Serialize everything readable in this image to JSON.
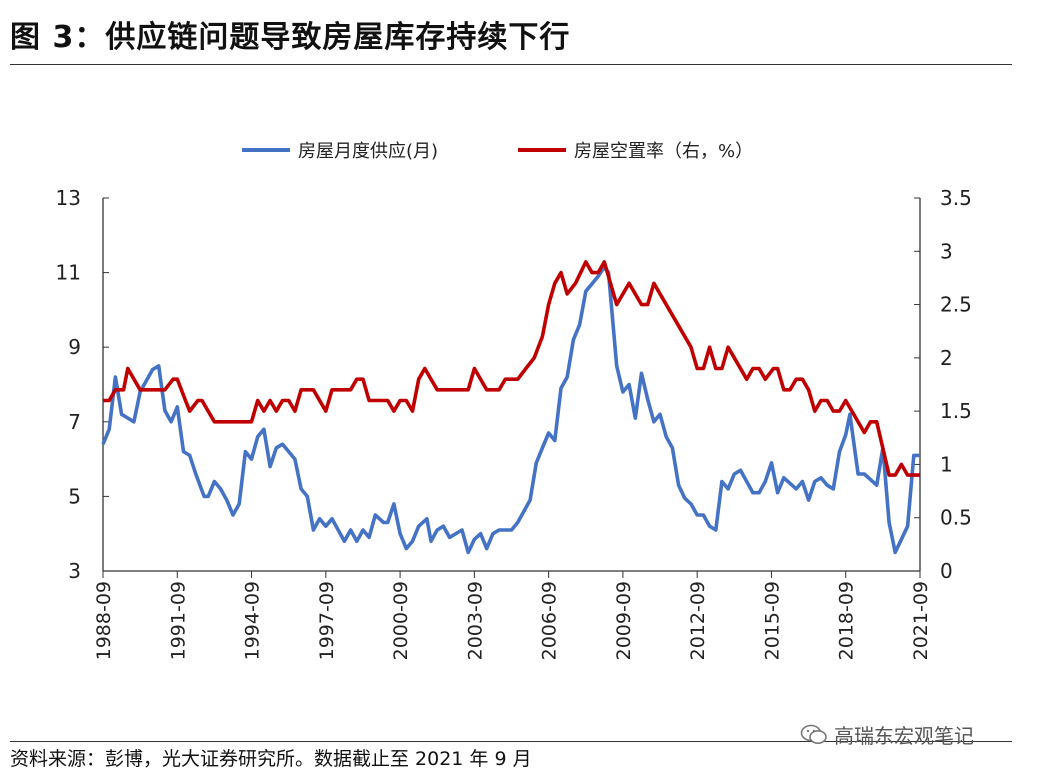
{
  "title": "图 3：供应链问题导致房屋库存持续下行",
  "source": "资料来源：彭博，光大证券研究所。数据截止至 2021 年 9 月",
  "watermark": "高瑞东宏观笔记",
  "chart_data": {
    "type": "line",
    "title": "",
    "xlabel": "",
    "ylabel": "",
    "legend_position": "top",
    "grid": false,
    "x_ticks": [
      "1988-09",
      "1991-09",
      "1994-09",
      "1997-09",
      "2000-09",
      "2003-09",
      "2006-09",
      "2009-09",
      "2012-09",
      "2015-09",
      "2018-09",
      "2021-09"
    ],
    "xlim": [
      "1988-09",
      "2021-09"
    ],
    "y_left": {
      "ylim": [
        3,
        13
      ],
      "ticks": [
        "3",
        "5",
        "7",
        "9",
        "11",
        "13"
      ]
    },
    "y_right": {
      "ylim": [
        0,
        3.5
      ],
      "ticks": [
        "0",
        "0.5",
        "1",
        "1.5",
        "2",
        "2.5",
        "3",
        "3.5"
      ]
    },
    "series": [
      {
        "name": "房屋月度供应(月)",
        "axis": "left",
        "color": "#4472C4",
        "points": [
          [
            "1988-09",
            6.4
          ],
          [
            "1988-12",
            6.8
          ],
          [
            "1989-03",
            8.2
          ],
          [
            "1989-06",
            7.2
          ],
          [
            "1989-12",
            7.0
          ],
          [
            "1990-03",
            7.8
          ],
          [
            "1990-09",
            8.4
          ],
          [
            "1990-12",
            8.5
          ],
          [
            "1991-03",
            7.3
          ],
          [
            "1991-06",
            7.0
          ],
          [
            "1991-09",
            7.4
          ],
          [
            "1991-12",
            6.2
          ],
          [
            "1992-03",
            6.1
          ],
          [
            "1992-06",
            5.6
          ],
          [
            "1992-10",
            5.0
          ],
          [
            "1992-12",
            5.0
          ],
          [
            "1993-03",
            5.4
          ],
          [
            "1993-06",
            5.2
          ],
          [
            "1993-09",
            4.9
          ],
          [
            "1993-12",
            4.5
          ],
          [
            "1994-03",
            4.8
          ],
          [
            "1994-06",
            6.2
          ],
          [
            "1994-09",
            6.0
          ],
          [
            "1994-12",
            6.6
          ],
          [
            "1995-03",
            6.8
          ],
          [
            "1995-06",
            5.8
          ],
          [
            "1995-09",
            6.3
          ],
          [
            "1995-12",
            6.4
          ],
          [
            "1996-03",
            6.2
          ],
          [
            "1996-06",
            6.0
          ],
          [
            "1996-09",
            5.2
          ],
          [
            "1996-12",
            5.0
          ],
          [
            "1997-03",
            4.1
          ],
          [
            "1997-06",
            4.4
          ],
          [
            "1997-09",
            4.2
          ],
          [
            "1997-12",
            4.4
          ],
          [
            "1998-06",
            3.8
          ],
          [
            "1998-09",
            4.1
          ],
          [
            "1998-12",
            3.8
          ],
          [
            "1999-03",
            4.1
          ],
          [
            "1999-06",
            3.9
          ],
          [
            "1999-09",
            4.5
          ],
          [
            "2000-01",
            4.3
          ],
          [
            "2000-03",
            4.3
          ],
          [
            "2000-06",
            4.8
          ],
          [
            "2000-09",
            4.0
          ],
          [
            "2000-12",
            3.6
          ],
          [
            "2001-03",
            3.8
          ],
          [
            "2001-06",
            4.2
          ],
          [
            "2001-10",
            4.4
          ],
          [
            "2001-12",
            3.8
          ],
          [
            "2002-03",
            4.1
          ],
          [
            "2002-06",
            4.2
          ],
          [
            "2002-09",
            3.9
          ],
          [
            "2003-03",
            4.1
          ],
          [
            "2003-06",
            3.5
          ],
          [
            "2003-09",
            3.85
          ],
          [
            "2003-12",
            4.0
          ],
          [
            "2004-03",
            3.6
          ],
          [
            "2004-06",
            4.0
          ],
          [
            "2004-09",
            4.1
          ],
          [
            "2005-03",
            4.1
          ],
          [
            "2005-06",
            4.3
          ],
          [
            "2005-10",
            4.7
          ],
          [
            "2005-12",
            4.9
          ],
          [
            "2006-03",
            5.9
          ],
          [
            "2006-06",
            6.3
          ],
          [
            "2006-09",
            6.7
          ],
          [
            "2006-12",
            6.5
          ],
          [
            "2007-03",
            7.9
          ],
          [
            "2007-06",
            8.2
          ],
          [
            "2007-09",
            9.2
          ],
          [
            "2007-12",
            9.6
          ],
          [
            "2008-03",
            10.5
          ],
          [
            "2008-09",
            10.9
          ],
          [
            "2008-12",
            11.15
          ],
          [
            "2009-02",
            11.0
          ],
          [
            "2009-06",
            8.5
          ],
          [
            "2009-09",
            7.8
          ],
          [
            "2009-12",
            8.0
          ],
          [
            "2010-03",
            7.1
          ],
          [
            "2010-06",
            8.3
          ],
          [
            "2010-09",
            7.6
          ],
          [
            "2010-12",
            7.0
          ],
          [
            "2011-03",
            7.2
          ],
          [
            "2011-06",
            6.6
          ],
          [
            "2011-09",
            6.3
          ],
          [
            "2011-12",
            5.3
          ],
          [
            "2012-03",
            4.95
          ],
          [
            "2012-06",
            4.8
          ],
          [
            "2012-09",
            4.5
          ],
          [
            "2012-12",
            4.5
          ],
          [
            "2013-03",
            4.2
          ],
          [
            "2013-06",
            4.1
          ],
          [
            "2013-09",
            5.4
          ],
          [
            "2013-12",
            5.2
          ],
          [
            "2014-03",
            5.6
          ],
          [
            "2014-06",
            5.7
          ],
          [
            "2014-09",
            5.4
          ],
          [
            "2014-12",
            5.1
          ],
          [
            "2015-03",
            5.1
          ],
          [
            "2015-06",
            5.4
          ],
          [
            "2015-09",
            5.9
          ],
          [
            "2015-12",
            5.1
          ],
          [
            "2016-03",
            5.5
          ],
          [
            "2016-06",
            5.35
          ],
          [
            "2016-09",
            5.2
          ],
          [
            "2016-12",
            5.4
          ],
          [
            "2017-03",
            4.9
          ],
          [
            "2017-06",
            5.4
          ],
          [
            "2017-09",
            5.5
          ],
          [
            "2017-12",
            5.3
          ],
          [
            "2018-03",
            5.2
          ],
          [
            "2018-06",
            6.2
          ],
          [
            "2018-09",
            6.65
          ],
          [
            "2018-11",
            7.2
          ],
          [
            "2019-03",
            5.6
          ],
          [
            "2019-06",
            5.6
          ],
          [
            "2019-09",
            5.45
          ],
          [
            "2019-12",
            5.3
          ],
          [
            "2020-03",
            6.3
          ],
          [
            "2020-06",
            4.3
          ],
          [
            "2020-09",
            3.5
          ],
          [
            "2020-12",
            3.85
          ],
          [
            "2021-03",
            4.2
          ],
          [
            "2021-06",
            6.1
          ],
          [
            "2021-09",
            6.1
          ]
        ]
      },
      {
        "name": "房屋空置率（右，%）",
        "axis": "right",
        "color": "#C00000",
        "points": [
          [
            "1988-09",
            1.6
          ],
          [
            "1988-12",
            1.6
          ],
          [
            "1989-03",
            1.7
          ],
          [
            "1989-07",
            1.7
          ],
          [
            "1989-09",
            1.9
          ],
          [
            "1990-03",
            1.7
          ],
          [
            "1991-03",
            1.7
          ],
          [
            "1991-07",
            1.8
          ],
          [
            "1991-09",
            1.8
          ],
          [
            "1992-01",
            1.6
          ],
          [
            "1992-03",
            1.5
          ],
          [
            "1992-07",
            1.6
          ],
          [
            "1992-09",
            1.6
          ],
          [
            "1993-03",
            1.4
          ],
          [
            "1994-09",
            1.4
          ],
          [
            "1994-12",
            1.6
          ],
          [
            "1995-03",
            1.5
          ],
          [
            "1995-06",
            1.6
          ],
          [
            "1995-09",
            1.5
          ],
          [
            "1995-12",
            1.6
          ],
          [
            "1996-03",
            1.6
          ],
          [
            "1996-06",
            1.5
          ],
          [
            "1996-09",
            1.7
          ],
          [
            "1997-03",
            1.7
          ],
          [
            "1997-09",
            1.5
          ],
          [
            "1997-12",
            1.7
          ],
          [
            "1998-09",
            1.7
          ],
          [
            "1998-12",
            1.8
          ],
          [
            "1999-03",
            1.8
          ],
          [
            "1999-06",
            1.6
          ],
          [
            "2000-03",
            1.6
          ],
          [
            "2000-06",
            1.5
          ],
          [
            "2000-09",
            1.6
          ],
          [
            "2000-12",
            1.6
          ],
          [
            "2001-03",
            1.5
          ],
          [
            "2001-06",
            1.8
          ],
          [
            "2001-09",
            1.9
          ],
          [
            "2002-03",
            1.7
          ],
          [
            "2003-06",
            1.7
          ],
          [
            "2003-09",
            1.9
          ],
          [
            "2004-03",
            1.7
          ],
          [
            "2004-09",
            1.7
          ],
          [
            "2004-12",
            1.8
          ],
          [
            "2005-06",
            1.8
          ],
          [
            "2005-10",
            1.9
          ],
          [
            "2006-02",
            2.0
          ],
          [
            "2006-06",
            2.2
          ],
          [
            "2006-09",
            2.5
          ],
          [
            "2006-12",
            2.7
          ],
          [
            "2007-03",
            2.8
          ],
          [
            "2007-06",
            2.6
          ],
          [
            "2007-10",
            2.7
          ],
          [
            "2008-03",
            2.9
          ],
          [
            "2008-06",
            2.8
          ],
          [
            "2008-09",
            2.8
          ],
          [
            "2008-12",
            2.9
          ],
          [
            "2009-06",
            2.5
          ],
          [
            "2009-12",
            2.7
          ],
          [
            "2010-06",
            2.5
          ],
          [
            "2010-09",
            2.5
          ],
          [
            "2010-12",
            2.7
          ],
          [
            "2012-06",
            2.1
          ],
          [
            "2012-09",
            1.9
          ],
          [
            "2012-12",
            1.9
          ],
          [
            "2013-03",
            2.1
          ],
          [
            "2013-06",
            1.9
          ],
          [
            "2013-09",
            1.9
          ],
          [
            "2013-12",
            2.1
          ],
          [
            "2014-09",
            1.8
          ],
          [
            "2014-12",
            1.9
          ],
          [
            "2015-03",
            1.9
          ],
          [
            "2015-06",
            1.8
          ],
          [
            "2015-10",
            1.9
          ],
          [
            "2015-12",
            1.9
          ],
          [
            "2016-03",
            1.7
          ],
          [
            "2016-06",
            1.7
          ],
          [
            "2016-09",
            1.8
          ],
          [
            "2016-12",
            1.8
          ],
          [
            "2017-03",
            1.7
          ],
          [
            "2017-06",
            1.5
          ],
          [
            "2017-09",
            1.6
          ],
          [
            "2017-12",
            1.6
          ],
          [
            "2018-03",
            1.5
          ],
          [
            "2018-06",
            1.5
          ],
          [
            "2018-09",
            1.6
          ],
          [
            "2019-06",
            1.3
          ],
          [
            "2019-09",
            1.4
          ],
          [
            "2019-12",
            1.4
          ],
          [
            "2020-06",
            0.9
          ],
          [
            "2020-09",
            0.9
          ],
          [
            "2020-12",
            1.0
          ],
          [
            "2021-03",
            0.9
          ],
          [
            "2021-09",
            0.9
          ]
        ]
      }
    ]
  }
}
